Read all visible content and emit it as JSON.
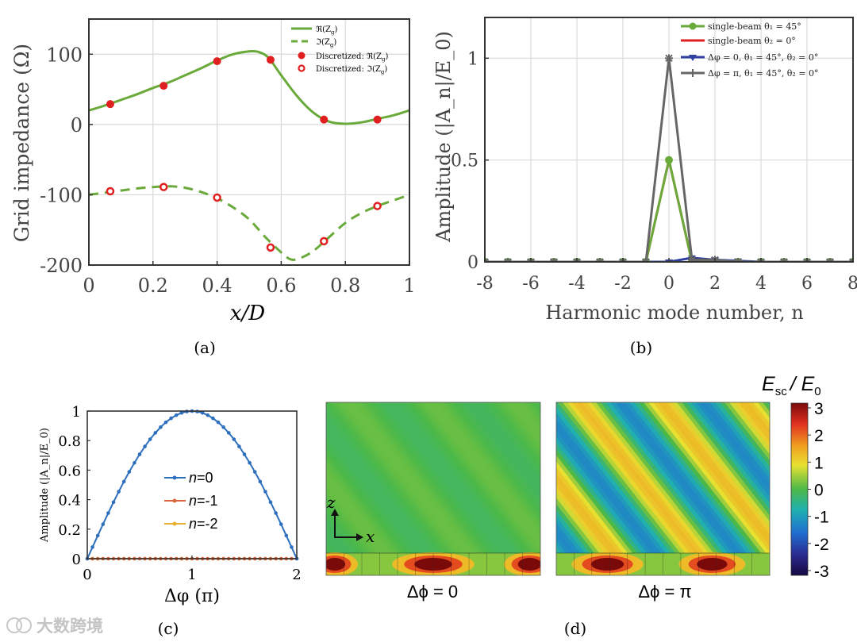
{
  "figure": {
    "panel_labels": [
      "(a)",
      "(b)",
      "(c)",
      "(d)"
    ],
    "watermark": "大数跨境"
  },
  "chart_data": [
    {
      "id": "a",
      "type": "line",
      "xlabel": "x/D",
      "ylabel": "Grid impedance (Ω)",
      "xlim": [
        0,
        1
      ],
      "ylim": [
        -200,
        150
      ],
      "xticks": [
        0,
        0.2,
        0.4,
        0.6,
        0.8,
        1
      ],
      "xtick_labels": [
        "0",
        "0.2",
        "0.4",
        "0.6",
        "0.8",
        "1"
      ],
      "yticks": [
        -200,
        -100,
        0,
        100
      ],
      "ytick_labels": [
        "-200",
        "-100",
        "0",
        "100"
      ],
      "grid": true,
      "legend_position": "top-right",
      "series": [
        {
          "name": "ℜ(Z_g)",
          "legend_label": "ℜ(Z_g)",
          "style": "solid-line",
          "color": "#6aaa3a",
          "x": [
            0,
            0.05,
            0.1,
            0.15,
            0.2,
            0.25,
            0.3,
            0.35,
            0.4,
            0.45,
            0.5,
            0.53,
            0.56,
            0.6,
            0.65,
            0.7,
            0.75,
            0.8,
            0.85,
            0.9,
            0.95,
            1.0
          ],
          "y": [
            20,
            27,
            35,
            43,
            52,
            60,
            70,
            80,
            91,
            100,
            104,
            103,
            95,
            70,
            40,
            17,
            4,
            1,
            3,
            8,
            13,
            20
          ]
        },
        {
          "name": "ℑ(Z_g)",
          "legend_label": "ℑ(Z_g)",
          "style": "dashed-line",
          "color": "#6aaa3a",
          "x": [
            0,
            0.05,
            0.1,
            0.15,
            0.2,
            0.25,
            0.3,
            0.35,
            0.4,
            0.45,
            0.5,
            0.55,
            0.6,
            0.63,
            0.66,
            0.7,
            0.75,
            0.8,
            0.85,
            0.9,
            0.95,
            1.0
          ],
          "y": [
            -100,
            -97,
            -94,
            -91,
            -89,
            -88,
            -90,
            -96,
            -105,
            -118,
            -135,
            -160,
            -182,
            -192,
            -190,
            -180,
            -160,
            -140,
            -126,
            -116,
            -108,
            -100
          ]
        },
        {
          "name": "Discretized: ℜ(Z_g)",
          "legend_label": "Discretized: ℜ(Z_g)",
          "style": "filled-marker",
          "color": "#e02020",
          "x": [
            0.0667,
            0.2333,
            0.4,
            0.5667,
            0.7333,
            0.9
          ],
          "y": [
            29,
            55,
            90,
            92,
            7,
            7
          ]
        },
        {
          "name": "Discretized: ℑ(Z_g)",
          "legend_label": "Discretized: ℑ(Z_g)",
          "style": "open-marker",
          "color": "#e02020",
          "x": [
            0.0667,
            0.2333,
            0.4,
            0.5667,
            0.7333,
            0.9
          ],
          "y": [
            -95,
            -89,
            -104,
            -175,
            -166,
            -116
          ]
        }
      ]
    },
    {
      "id": "b",
      "type": "line",
      "xlabel": "Harmonic mode number, n",
      "ylabel": "Amplitude (|A_n|/E_0)",
      "xlim": [
        -8,
        8
      ],
      "ylim": [
        0,
        1.2
      ],
      "xticks": [
        -8,
        -6,
        -4,
        -2,
        0,
        2,
        4,
        6,
        8
      ],
      "xtick_labels": [
        "-8",
        "-6",
        "-4",
        "-2",
        "0",
        "2",
        "4",
        "6",
        "8"
      ],
      "yticks": [
        0,
        0.5,
        1
      ],
      "ytick_labels": [
        "0",
        "0.5",
        "1"
      ],
      "grid": true,
      "legend_position": "top-right",
      "categories": [
        -8,
        -7,
        -6,
        -5,
        -4,
        -3,
        -2,
        -1,
        0,
        1,
        2,
        3,
        4,
        5,
        6,
        7,
        8
      ],
      "series": [
        {
          "name": "single-beam θ1 = 45°",
          "legend_label": "single-beam θ₁ = 45°",
          "color": "#6aaa3a",
          "marker": "circle",
          "values": [
            0,
            0,
            0,
            0,
            0,
            0,
            0,
            0,
            0.5,
            0,
            0,
            0,
            0,
            0,
            0,
            0,
            0
          ]
        },
        {
          "name": "single-beam θ2 = 0°",
          "legend_label": "single-beam θ₂ = 0°",
          "color": "#e02020",
          "marker": "none",
          "values": [
            0,
            0,
            0,
            0,
            0,
            0,
            0,
            0,
            0.5,
            0,
            0,
            0,
            0,
            0,
            0,
            0,
            0
          ]
        },
        {
          "name": "Δφ = 0, θ1 = 45°, θ2 = 0°",
          "legend_label": "Δφ = 0, θ₁ = 45°, θ₂ = 0°",
          "color": "#3040a0",
          "marker": "triangle",
          "values": [
            0,
            0,
            0,
            0,
            0,
            0,
            0,
            0,
            0,
            0.02,
            0.01,
            0.005,
            0,
            0,
            0,
            0,
            0
          ]
        },
        {
          "name": "Δφ = π, θ1 = 45°, θ2 = 0°",
          "legend_label": "Δφ = π, θ₁ = 45°, θ₂ = 0°",
          "color": "#666666",
          "marker": "star",
          "values": [
            0,
            0,
            0,
            0,
            0,
            0,
            0,
            0,
            1.0,
            0.01,
            0.01,
            0,
            0,
            0,
            0,
            0,
            0
          ]
        }
      ]
    },
    {
      "id": "c",
      "type": "line",
      "xlabel": "Δφ (π)",
      "ylabel": "Amplitude (|A_n|/E_0)",
      "xlim": [
        0,
        2
      ],
      "ylim": [
        0,
        1
      ],
      "xticks": [
        0,
        1,
        2
      ],
      "xtick_labels": [
        "0",
        "1",
        "2"
      ],
      "yticks": [
        0,
        0.2,
        0.4,
        0.6,
        0.8,
        1
      ],
      "ytick_labels": [
        "0",
        "0.2",
        "0.4",
        "0.6",
        "0.8",
        "1"
      ],
      "grid": false,
      "legend_position": "center-left",
      "series": [
        {
          "name": "n=0",
          "legend_prefix": "n",
          "legend_suffix": "=0",
          "color": "#2e6fbd",
          "formula": "sin(pi*x/2)",
          "n_points": 41
        },
        {
          "name": "n=-1",
          "legend_prefix": "n",
          "legend_suffix": "=-1",
          "color": "#d9663a",
          "formula": "0",
          "n_points": 41
        },
        {
          "name": "n=-2",
          "legend_prefix": "n",
          "legend_suffix": "=-2",
          "color": "#e8b030",
          "formula": "0",
          "n_points": 41
        }
      ]
    },
    {
      "id": "d",
      "type": "heatmap",
      "colorbar_label_main": "E",
      "colorbar_label_sub": "sc",
      "colorbar_label_tail": "/ E",
      "colorbar_label_sub2": "0",
      "colorbar_range": [
        -3,
        3
      ],
      "colorbar_ticks": [
        "3",
        "2",
        "1",
        "0",
        "-1",
        "-2",
        "-3"
      ],
      "panels": [
        {
          "caption": "Δϕ = 0",
          "field_amplitude": 0.15
        },
        {
          "caption": "Δϕ = π",
          "field_amplitude": 1.2
        }
      ],
      "axis_labels": {
        "vertical": "z",
        "horizontal": "x"
      }
    }
  ]
}
